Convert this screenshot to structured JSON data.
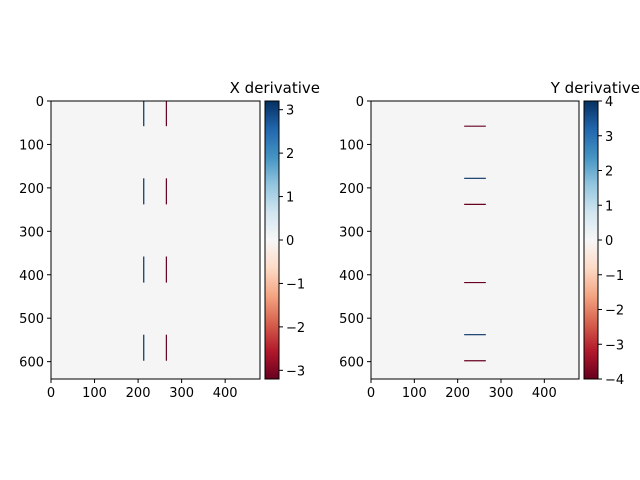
{
  "chart_data": [
    {
      "type": "heatmap",
      "title": "X derivative",
      "title_align": "right",
      "colormap": "RdBu",
      "background_color": "#f5f5f5",
      "image_extent": {
        "x": [
          0,
          480
        ],
        "y": [
          640,
          0
        ]
      },
      "xlim": [
        0,
        480
      ],
      "ylim": [
        640,
        0
      ],
      "xticks": [
        0,
        100,
        200,
        300,
        400
      ],
      "yticks": [
        0,
        100,
        200,
        300,
        400,
        500,
        600
      ],
      "colorbar": {
        "vmin": -3.2,
        "vmax": 3.2,
        "ticks": [
          3,
          2,
          1,
          0,
          -1,
          -2,
          -3
        ],
        "tick_labels": [
          "3",
          "2",
          "1",
          "0",
          "−1",
          "−2",
          "−3"
        ]
      },
      "lines": [
        {
          "orientation": "vertical",
          "x": 213,
          "y": [
            0,
            58
          ],
          "value": 3.2
        },
        {
          "orientation": "vertical",
          "x": 265,
          "y": [
            0,
            58
          ],
          "value": -3.2
        },
        {
          "orientation": "vertical",
          "x": 213,
          "y": [
            178,
            238
          ],
          "value": 3.2
        },
        {
          "orientation": "vertical",
          "x": 265,
          "y": [
            178,
            238
          ],
          "value": -3.2
        },
        {
          "orientation": "vertical",
          "x": 213,
          "y": [
            358,
            418
          ],
          "value": 3.2
        },
        {
          "orientation": "vertical",
          "x": 265,
          "y": [
            358,
            418
          ],
          "value": -3.2
        },
        {
          "orientation": "vertical",
          "x": 213,
          "y": [
            538,
            598
          ],
          "value": 3.2
        },
        {
          "orientation": "vertical",
          "x": 265,
          "y": [
            538,
            598
          ],
          "value": -3.2
        }
      ]
    },
    {
      "type": "heatmap",
      "title": "Y derivative",
      "title_align": "right",
      "colormap": "RdBu",
      "background_color": "#f5f5f5",
      "image_extent": {
        "x": [
          0,
          480
        ],
        "y": [
          640,
          0
        ]
      },
      "xlim": [
        0,
        480
      ],
      "ylim": [
        640,
        0
      ],
      "xticks": [
        0,
        100,
        200,
        300,
        400
      ],
      "yticks": [
        0,
        100,
        200,
        300,
        400,
        500,
        600
      ],
      "colorbar": {
        "vmin": -4,
        "vmax": 4,
        "ticks": [
          4,
          3,
          2,
          1,
          0,
          -1,
          -2,
          -3,
          -4
        ],
        "tick_labels": [
          "4",
          "3",
          "2",
          "1",
          "0",
          "−1",
          "−2",
          "−3",
          "−4"
        ]
      },
      "lines": [
        {
          "orientation": "horizontal",
          "y": 58,
          "x": [
            215,
            265
          ],
          "value": -4
        },
        {
          "orientation": "horizontal",
          "y": 178,
          "x": [
            215,
            265
          ],
          "value": 4
        },
        {
          "orientation": "horizontal",
          "y": 238,
          "x": [
            215,
            265
          ],
          "value": -4
        },
        {
          "orientation": "horizontal",
          "y": 418,
          "x": [
            215,
            265
          ],
          "value": -4
        },
        {
          "orientation": "horizontal",
          "y": 538,
          "x": [
            215,
            265
          ],
          "value": 4
        },
        {
          "orientation": "horizontal",
          "y": 598,
          "x": [
            215,
            265
          ],
          "value": -4
        }
      ]
    }
  ]
}
